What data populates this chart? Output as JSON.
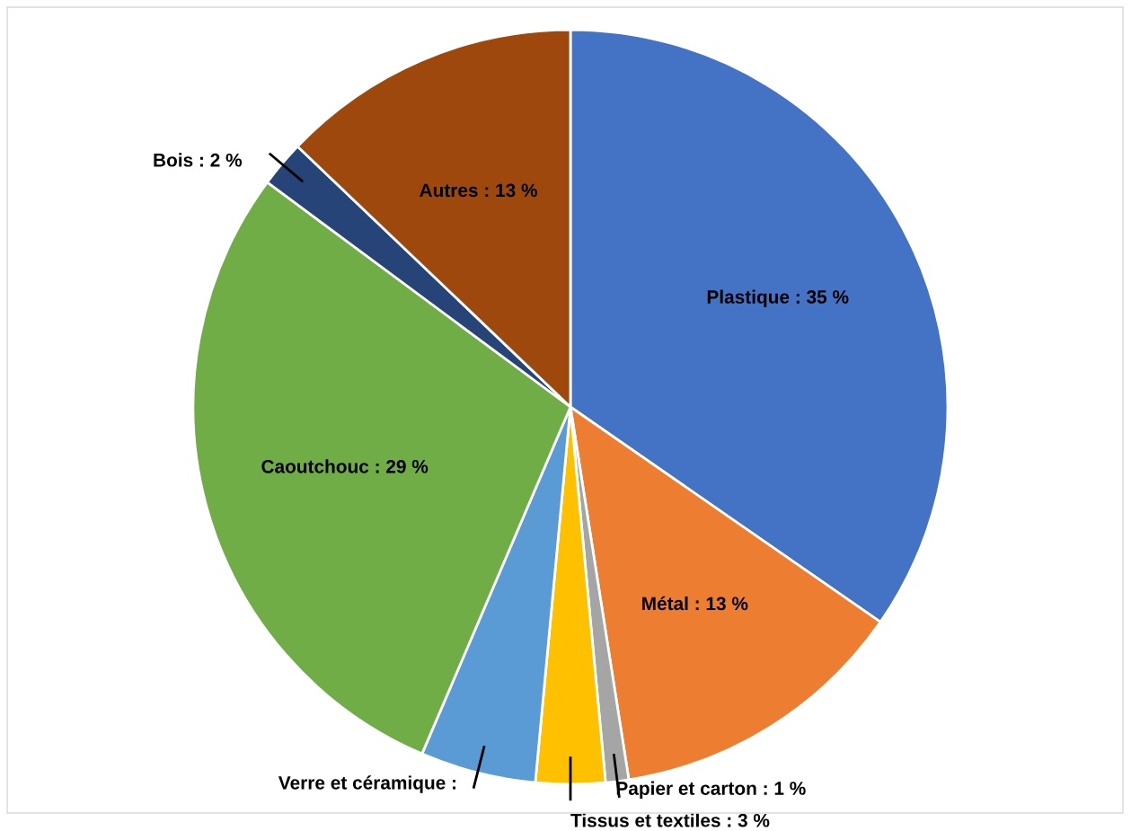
{
  "chart_data": {
    "type": "pie",
    "categories": [
      "Plastique",
      "Métal",
      "Papier et carton",
      "Tissus et textiles",
      "Verre et céramique",
      "Caoutchouc",
      "Bois",
      "Autres"
    ],
    "values": [
      35,
      13,
      1,
      3,
      5,
      29,
      2,
      13
    ],
    "value_labels": [
      ": 35 %",
      ": 13 %",
      ": 1 %",
      ": 3 %",
      ":",
      ": 29 %",
      ": 2 %",
      ": 13 %"
    ],
    "colors": [
      "#4472c4",
      "#ed7d31",
      "#a5a5a5",
      "#ffc000",
      "#5b9bd5",
      "#70ad47",
      "#264478",
      "#9e480e"
    ],
    "legend": false
  }
}
